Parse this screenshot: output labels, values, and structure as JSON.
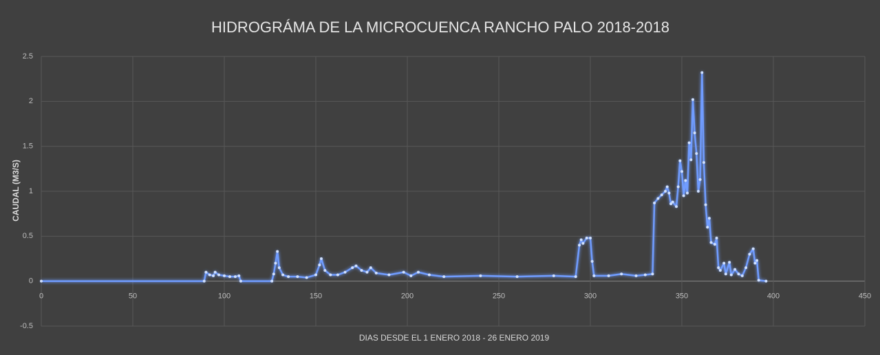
{
  "chart_data": {
    "type": "line",
    "title": "HIDROGRÁMA DE LA  MICROCUENCA RANCHO PALO 2018-2018",
    "x_label": "DIAS DESDE EL 1 ENERO 2018 - 26 ENERO 2019",
    "y_label": "CAUDAL (M3/S)",
    "xlim": [
      0,
      450
    ],
    "xticks": [
      0,
      50,
      100,
      150,
      200,
      250,
      300,
      350,
      400,
      450
    ],
    "ylim": [
      -0.5,
      2.5
    ],
    "yticks": [
      -0.5,
      0,
      0.5,
      1,
      1.5,
      2,
      2.5
    ],
    "grid": true,
    "color": "#6f9cff",
    "x": [
      0,
      89,
      90,
      92,
      94,
      95,
      97,
      100,
      103,
      106,
      108,
      109,
      126,
      127,
      128,
      129,
      130,
      132,
      135,
      140,
      145,
      150,
      152,
      153,
      155,
      158,
      162,
      166,
      170,
      172,
      175,
      178,
      180,
      183,
      190,
      198,
      202,
      206,
      212,
      220,
      240,
      260,
      280,
      292,
      294,
      295,
      296,
      298,
      300,
      301,
      302,
      310,
      317,
      325,
      330,
      334,
      335,
      337,
      339,
      341,
      342,
      343,
      344,
      345,
      347,
      348,
      349,
      350,
      351,
      352,
      353,
      354,
      355,
      356,
      357,
      358,
      359,
      360,
      361,
      362,
      363,
      364,
      365,
      366,
      368,
      369,
      370,
      371,
      373,
      374,
      376,
      377,
      379,
      381,
      383,
      385,
      387,
      389,
      390,
      391,
      392,
      396
    ],
    "values": [
      0,
      0,
      0.1,
      0.07,
      0.06,
      0.1,
      0.07,
      0.06,
      0.05,
      0.05,
      0.06,
      0,
      0,
      0.08,
      0.2,
      0.33,
      0.15,
      0.07,
      0.05,
      0.05,
      0.04,
      0.07,
      0.18,
      0.25,
      0.12,
      0.07,
      0.07,
      0.1,
      0.15,
      0.17,
      0.12,
      0.1,
      0.15,
      0.09,
      0.07,
      0.1,
      0.06,
      0.1,
      0.07,
      0.05,
      0.06,
      0.05,
      0.06,
      0.05,
      0.4,
      0.46,
      0.42,
      0.48,
      0.48,
      0.22,
      0.06,
      0.06,
      0.08,
      0.06,
      0.07,
      0.08,
      0.87,
      0.92,
      0.96,
      1.0,
      1.05,
      0.98,
      0.86,
      0.88,
      0.83,
      1.05,
      1.34,
      1.22,
      0.95,
      1.12,
      0.98,
      1.54,
      1.35,
      2.02,
      1.65,
      1.42,
      1.0,
      1.13,
      2.32,
      1.32,
      0.85,
      0.6,
      0.7,
      0.43,
      0.41,
      0.48,
      0.15,
      0.12,
      0.2,
      0.08,
      0.21,
      0.07,
      0.13,
      0.08,
      0.06,
      0.15,
      0.3,
      0.36,
      0.2,
      0.23,
      0.01,
      0
    ]
  }
}
